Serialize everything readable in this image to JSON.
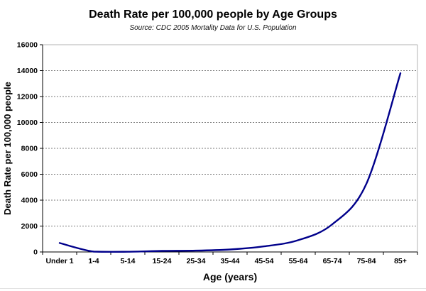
{
  "chart_data": {
    "type": "line",
    "title": "Death Rate per 100,000 people by Age Groups",
    "subtitle": "Source: CDC 2005 Mortality Data for U.S. Population",
    "xlabel": "Age (years)",
    "ylabel": "Death Rate per 100,000 people",
    "categories": [
      "Under 1",
      "1-4",
      "5-14",
      "15-24",
      "25-34",
      "35-44",
      "45-54",
      "55-64",
      "65-74",
      "75-84",
      "85+"
    ],
    "values": [
      692,
      29,
      17,
      81,
      104,
      193,
      432,
      907,
      2137,
      5260,
      13800
    ],
    "ylim": [
      0,
      16000
    ],
    "yticks": [
      0,
      2000,
      4000,
      6000,
      8000,
      10000,
      12000,
      14000,
      16000
    ],
    "grid": "horizontal-dotted",
    "legend": "none",
    "line_smooth": true
  },
  "colors": {
    "line": "#00008B",
    "grid": "#7a7a7a",
    "axis": "#000000",
    "plot_border": "#b3b3b3",
    "background": "#ffffff",
    "page_edge": "#e2e2e2"
  }
}
